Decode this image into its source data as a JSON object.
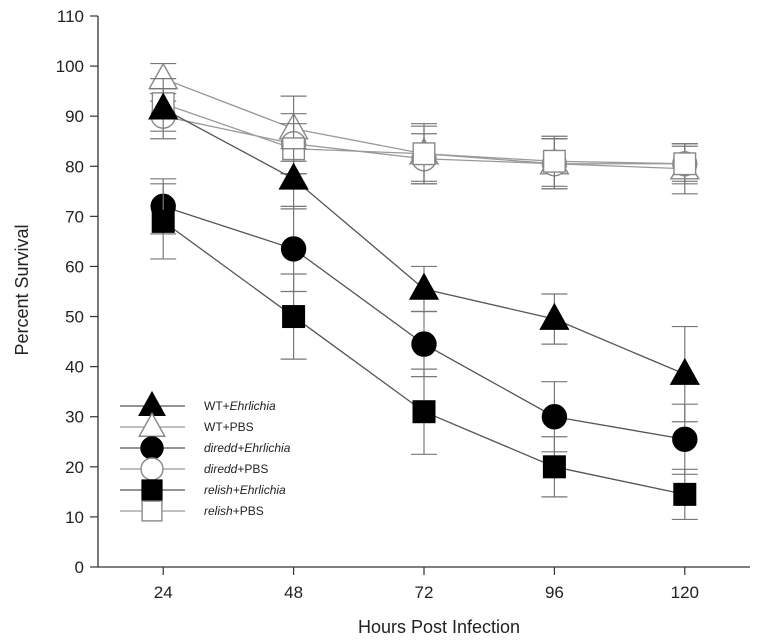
{
  "chart_data": {
    "type": "line",
    "title": "",
    "xlabel": "Hours Post Infection",
    "ylabel": "Percent Survival",
    "x": [
      24,
      48,
      72,
      96,
      120
    ],
    "xlim": [
      12,
      132
    ],
    "ylim": [
      0,
      110
    ],
    "yticks": [
      0,
      10,
      20,
      30,
      40,
      50,
      60,
      70,
      80,
      90,
      100,
      110
    ],
    "grid": false,
    "legend_position": "bottom-left",
    "series": [
      {
        "name": "WT+Ehrlichia",
        "legend_prefix": "WT+",
        "legend_suffix": "Ehrlichia",
        "italic_part": "suffix",
        "marker": "triangle",
        "filled": true,
        "values": [
          91.5,
          77.5,
          55.5,
          49.5,
          38.5
        ],
        "errors": [
          6,
          6,
          4.5,
          5,
          9.5
        ]
      },
      {
        "name": "WT+PBS",
        "legend_prefix": "WT+",
        "legend_suffix": "PBS",
        "italic_part": "none",
        "marker": "triangle",
        "filled": false,
        "values": [
          97.5,
          87.5,
          82.5,
          80.5,
          79.5
        ],
        "errors": [
          3,
          6.5,
          5.5,
          5,
          5
        ]
      },
      {
        "name": "diredd+Ehrlichia",
        "legend_prefix": "diredd",
        "legend_suffix": "+Ehrlichia",
        "italic_part": "both",
        "marker": "circle",
        "filled": true,
        "values": [
          72,
          63.5,
          44.5,
          30,
          25.5
        ],
        "errors": [
          5.5,
          8.5,
          6.5,
          7,
          7
        ]
      },
      {
        "name": "diredd+PBS",
        "legend_prefix": "diredd",
        "legend_suffix": "+PBS",
        "italic_part": "prefix",
        "marker": "circle",
        "filled": false,
        "values": [
          90,
          84.5,
          81.5,
          80.5,
          80.5
        ],
        "errors": [
          3,
          6,
          5,
          5,
          3.5
        ]
      },
      {
        "name": "relish+Ehrlichia",
        "legend_prefix": "relish",
        "legend_suffix": "+Ehrlichia",
        "italic_part": "both",
        "marker": "square",
        "filled": true,
        "values": [
          69,
          50,
          31,
          20,
          14.5
        ],
        "errors": [
          7.5,
          8.5,
          8.5,
          6,
          5
        ]
      },
      {
        "name": "relish+PBS",
        "legend_prefix": "relish",
        "legend_suffix": "+PBS",
        "italic_part": "prefix",
        "marker": "square",
        "filled": false,
        "values": [
          92.5,
          83.5,
          82.5,
          81,
          80.5
        ],
        "errors": [
          3,
          5,
          6,
          5,
          4
        ]
      }
    ]
  }
}
